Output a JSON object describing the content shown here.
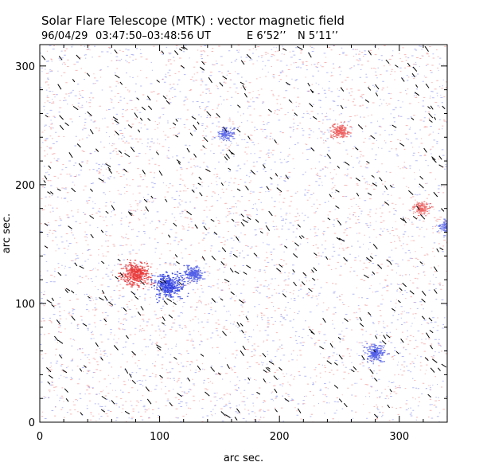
{
  "chart_data": {
    "type": "scatter",
    "title": "Solar Flare Telescope (MTK) : vector magnetic field",
    "subtitle": {
      "date": "96/04/29",
      "time_range": "03:47:50–03:48:56 UT",
      "pos_ew": "E 6’52’’",
      "pos_ns": "N 5’11’’"
    },
    "xlabel": "arc sec.",
    "ylabel": "arc sec.",
    "xlim": [
      0,
      340
    ],
    "ylim": [
      0,
      318
    ],
    "xticks": [
      0,
      100,
      200,
      300
    ],
    "yticks": [
      0,
      100,
      200,
      300
    ],
    "grid": false,
    "colors": {
      "positive": "#e83030",
      "negative": "#2a3ae0",
      "vector": "#000000",
      "axis": "#000000"
    },
    "series": [
      {
        "name": "positive field concentration",
        "color": "#e83030",
        "points": [
          {
            "x": 80,
            "y": 125,
            "strength": 1.0
          },
          {
            "x": 250,
            "y": 245,
            "strength": 0.4
          },
          {
            "x": 318,
            "y": 180,
            "strength": 0.3
          }
        ]
      },
      {
        "name": "negative field concentration",
        "color": "#2a3ae0",
        "points": [
          {
            "x": 107,
            "y": 115,
            "strength": 1.0
          },
          {
            "x": 128,
            "y": 125,
            "strength": 0.5
          },
          {
            "x": 280,
            "y": 58,
            "strength": 0.5
          },
          {
            "x": 155,
            "y": 243,
            "strength": 0.3
          },
          {
            "x": 340,
            "y": 165,
            "strength": 0.3
          }
        ]
      }
    ]
  }
}
